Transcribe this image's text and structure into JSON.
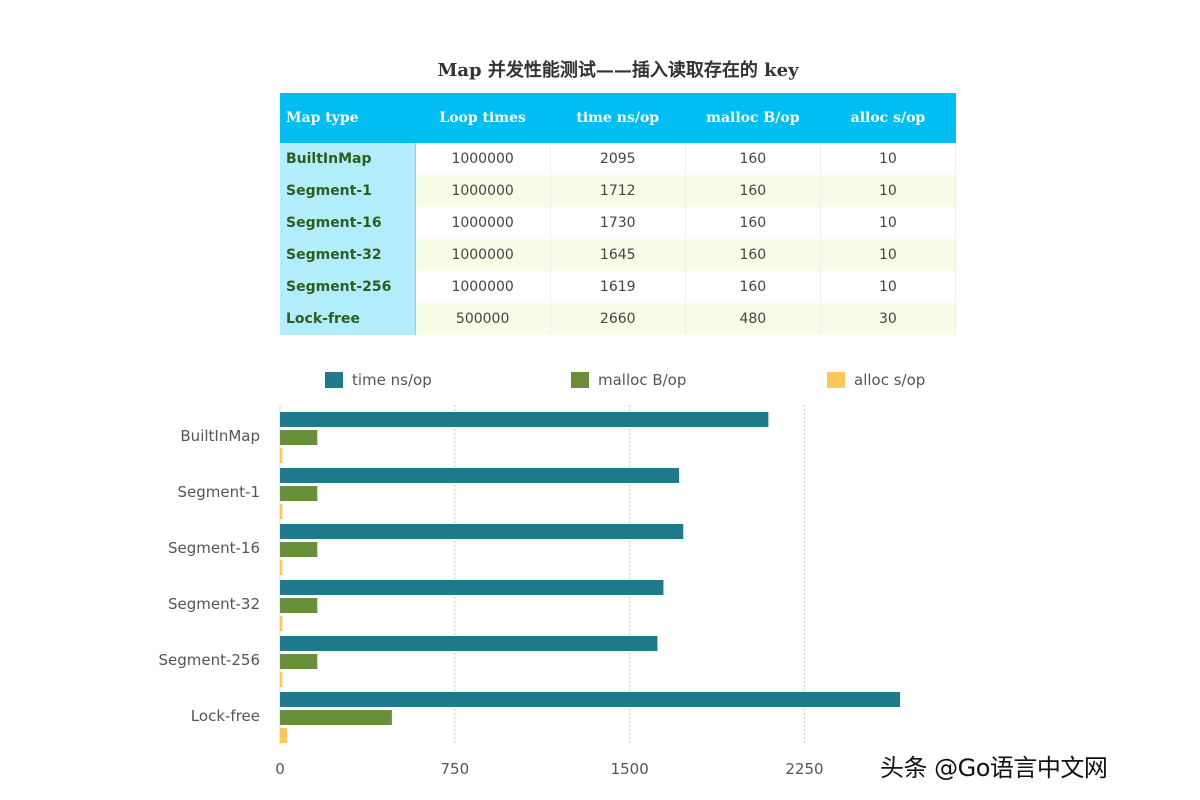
{
  "title": "Map 并发性能测试——插入读取存在的 key",
  "table": {
    "headers": [
      "Map type",
      "Loop times",
      "time ns/op",
      "malloc B/op",
      "alloc s/op"
    ],
    "rows": [
      [
        "BuiltInMap",
        "1000000",
        "2095",
        "160",
        "10"
      ],
      [
        "Segment-1",
        "1000000",
        "1712",
        "160",
        "10"
      ],
      [
        "Segment-16",
        "1000000",
        "1730",
        "160",
        "10"
      ],
      [
        "Segment-32",
        "1000000",
        "1645",
        "160",
        "10"
      ],
      [
        "Segment-256",
        "1000000",
        "1619",
        "160",
        "10"
      ],
      [
        "Lock-free",
        "500000",
        "2660",
        "480",
        "30"
      ]
    ]
  },
  "chart_data": {
    "type": "bar",
    "orientation": "horizontal",
    "categories": [
      "BuiltInMap",
      "Segment-1",
      "Segment-16",
      "Segment-32",
      "Segment-256",
      "Lock-free"
    ],
    "series": [
      {
        "name": "time ns/op",
        "color": "#1f7a8c",
        "values": [
          2095,
          1712,
          1730,
          1645,
          1619,
          2660
        ]
      },
      {
        "name": "malloc B/op",
        "color": "#6a8f3a",
        "values": [
          160,
          160,
          160,
          160,
          160,
          480
        ]
      },
      {
        "name": "alloc s/op",
        "color": "#ffc75a",
        "values": [
          10,
          10,
          10,
          10,
          10,
          30
        ]
      }
    ],
    "xticks": [
      0,
      750,
      1500,
      2250
    ],
    "xlim": [
      0,
      2960
    ],
    "grid": "vertical-dotted",
    "legend": "top"
  },
  "watermark": "头条 @Go语言中文网"
}
